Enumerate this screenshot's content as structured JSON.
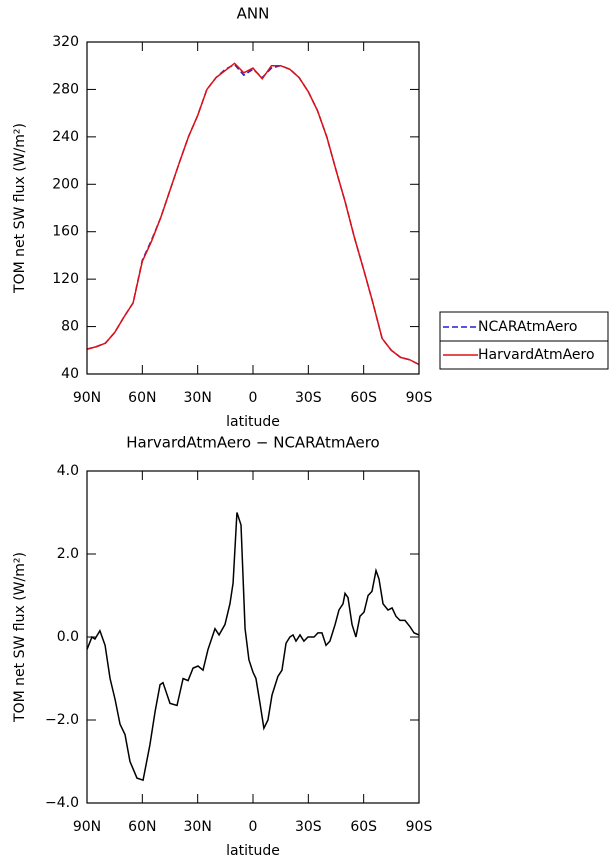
{
  "chart_data": [
    {
      "type": "line",
      "title": "ANN",
      "x_label": "latitude",
      "y_label": "TOM net SW flux (W/m²)",
      "x": [
        90,
        85,
        80,
        75,
        70,
        65,
        60,
        55,
        50,
        45,
        40,
        35,
        30,
        25,
        20,
        15,
        10,
        5,
        0,
        -5,
        -10,
        -15,
        -20,
        -25,
        -30,
        -35,
        -40,
        -45,
        -50,
        -55,
        -60,
        -65,
        -70,
        -75,
        -80,
        -85,
        -90
      ],
      "series": [
        {
          "name": "NCARAtmAero",
          "color": "#1f1fd6",
          "dash": true,
          "values": [
            61,
            63,
            66,
            75,
            88,
            100,
            136,
            153,
            172,
            195,
            218,
            240,
            258,
            280,
            290,
            297,
            301,
            292,
            297,
            290,
            298,
            300,
            297,
            290,
            278,
            262,
            240,
            212,
            185,
            155,
            128,
            100,
            70,
            60,
            54,
            52,
            48
          ]
        },
        {
          "name": "HarvardAtmAero",
          "color": "#e01010",
          "dash": false,
          "values": [
            61,
            63,
            66,
            75,
            88,
            100,
            135,
            152,
            172,
            195,
            218,
            240,
            258,
            280,
            290,
            296,
            302,
            294,
            298,
            289,
            300,
            300,
            297,
            290,
            278,
            262,
            240,
            212,
            185,
            155,
            128,
            100,
            70,
            60,
            54,
            52,
            48
          ]
        }
      ],
      "xlim": [
        90,
        -90
      ],
      "xticks": [
        {
          "value": 90,
          "label": "90N"
        },
        {
          "value": 60,
          "label": "60N"
        },
        {
          "value": 30,
          "label": "30N"
        },
        0,
        {
          "value": -30,
          "label": "30S"
        },
        {
          "value": -60,
          "label": "60S"
        },
        {
          "value": -90,
          "label": "90S"
        }
      ],
      "ylim": [
        40,
        320
      ],
      "yticks": [
        40,
        80,
        120,
        160,
        200,
        240,
        280,
        320
      ],
      "legend": "right"
    },
    {
      "type": "line",
      "title": "HarvardAtmAero − NCARAtmAero",
      "x_label": "latitude",
      "y_label": "TOM net SW flux (W/m²)",
      "x": [
        90,
        87.3,
        85.7,
        83,
        80.2,
        77.5,
        74.8,
        72.1,
        69.4,
        66.7,
        62.9,
        59.6,
        55.9,
        53.1,
        50.4,
        48.8,
        45,
        41.2,
        37.9,
        35.2,
        32.5,
        29.8,
        27.1,
        24.4,
        20.6,
        18.4,
        15.2,
        12.5,
        10.8,
        8.7,
        6.5,
        4.3,
        2.2,
        0,
        -1.6,
        -3.8,
        -5.9,
        -8.1,
        -10.3,
        -13.5,
        -15.7,
        -17.9,
        -20,
        -21.7,
        -23.3,
        -25.5,
        -27.6,
        -29.8,
        -33.1,
        -35.2,
        -37.4,
        -39.6,
        -41.7,
        -44.5,
        -46.6,
        -48.8,
        -49.9,
        -51.5,
        -53.7,
        -55.8,
        -58,
        -60.2,
        -62.4,
        -64.5,
        -66.7,
        -68.3,
        -70.5,
        -73.2,
        -75.4,
        -77.5,
        -79.7,
        -82.4,
        -85.1,
        -87.3,
        -90
      ],
      "series": [
        {
          "color": "#000000",
          "dash": false,
          "values": [
            -0.3,
            0,
            -0.05,
            0.15,
            -0.2,
            -1,
            -1.5,
            -2.1,
            -2.35,
            -3,
            -3.4,
            -3.45,
            -2.6,
            -1.8,
            -1.15,
            -1.1,
            -1.6,
            -1.65,
            -1,
            -1.05,
            -0.75,
            -0.7,
            -0.8,
            -0.3,
            0.2,
            0.05,
            0.3,
            0.8,
            1.3,
            3,
            2.7,
            0.2,
            -0.55,
            -0.85,
            -1,
            -1.6,
            -2.2,
            -2,
            -1.4,
            -0.95,
            -0.8,
            -0.15,
            0,
            0.05,
            -0.1,
            0.05,
            -0.1,
            0,
            0,
            0.1,
            0.1,
            -0.2,
            -0.1,
            0.3,
            0.65,
            0.8,
            1.05,
            0.95,
            0.3,
            0,
            0.5,
            0.6,
            1,
            1.1,
            1.6,
            1.4,
            0.8,
            0.65,
            0.7,
            0.5,
            0.4,
            0.4,
            0.25,
            0.1,
            0.05
          ]
        }
      ],
      "xlim": [
        90,
        -90
      ],
      "xticks": [
        {
          "value": 90,
          "label": "90N"
        },
        {
          "value": 60,
          "label": "60N"
        },
        {
          "value": 30,
          "label": "30N"
        },
        0,
        {
          "value": -30,
          "label": "30S"
        },
        {
          "value": -60,
          "label": "60S"
        },
        {
          "value": -90,
          "label": "90S"
        }
      ],
      "ylim": [
        -4,
        4
      ],
      "yticks": [
        {
          "value": -4,
          "label": "−4.0"
        },
        {
          "value": -2,
          "label": "−2.0"
        },
        {
          "value": 0,
          "label": "0.0"
        },
        {
          "value": 2,
          "label": "2.0"
        },
        {
          "value": 4,
          "label": "4.0"
        }
      ]
    }
  ]
}
